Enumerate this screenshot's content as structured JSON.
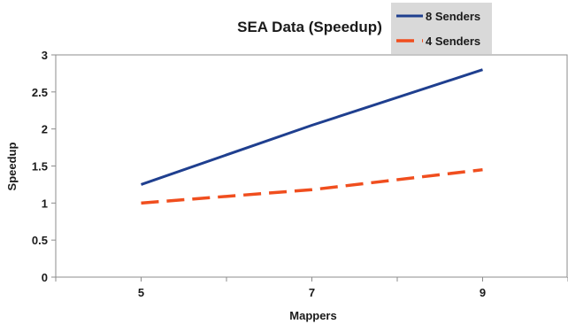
{
  "chart_data": {
    "type": "line",
    "title": "SEA Data (Speedup)",
    "xlabel": "Mappers",
    "ylabel": "Speedup",
    "x": [
      5,
      7,
      9
    ],
    "x_tick_labels": [
      "5",
      "7",
      "9"
    ],
    "xlim": [
      4,
      10
    ],
    "ylim": [
      0,
      3
    ],
    "y_ticks": [
      0,
      0.5,
      1,
      1.5,
      2,
      2.5,
      3
    ],
    "y_tick_labels": [
      "0",
      "0.5",
      "1",
      "1.5",
      "2",
      "2.5",
      "3"
    ],
    "grid": false,
    "legend_position": "top-right",
    "series": [
      {
        "name": "8 Senders",
        "values": [
          1.25,
          2.05,
          2.8
        ],
        "color": "#1f3f8f",
        "style": "solid"
      },
      {
        "name": "4 Senders",
        "values": [
          1.0,
          1.18,
          1.45
        ],
        "color": "#f04e1e",
        "style": "dashed"
      }
    ]
  }
}
